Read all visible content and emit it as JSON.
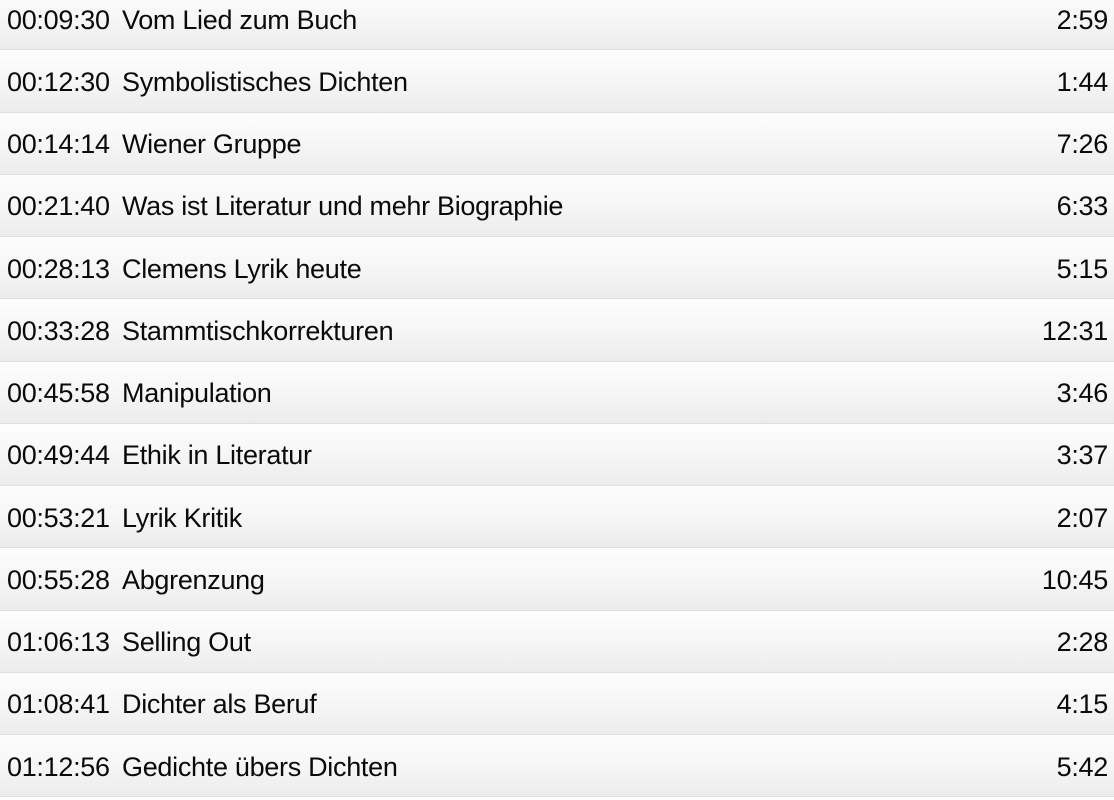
{
  "list": {
    "kind": "podcast-chapter-list",
    "colors": {
      "row_gradient_top": "#fdfdfd",
      "row_gradient_bottom": "#ececec",
      "divider": "#dfdfdf",
      "text": "#0a0a0a"
    }
  },
  "chapters": [
    {
      "start": "00:09:30",
      "title": "Vom Lied zum Buch",
      "duration": "2:59"
    },
    {
      "start": "00:12:30",
      "title": "Symbolistisches Dichten",
      "duration": "1:44"
    },
    {
      "start": "00:14:14",
      "title": "Wiener Gruppe",
      "duration": "7:26"
    },
    {
      "start": "00:21:40",
      "title": "Was ist Literatur und mehr Biographie",
      "duration": "6:33"
    },
    {
      "start": "00:28:13",
      "title": "Clemens Lyrik heute",
      "duration": "5:15"
    },
    {
      "start": "00:33:28",
      "title": "Stammtischkorrekturen",
      "duration": "12:31"
    },
    {
      "start": "00:45:58",
      "title": "Manipulation",
      "duration": "3:46"
    },
    {
      "start": "00:49:44",
      "title": "Ethik in Literatur",
      "duration": "3:37"
    },
    {
      "start": "00:53:21",
      "title": "Lyrik Kritik",
      "duration": "2:07"
    },
    {
      "start": "00:55:28",
      "title": "Abgrenzung",
      "duration": "10:45"
    },
    {
      "start": "01:06:13",
      "title": "Selling Out",
      "duration": "2:28"
    },
    {
      "start": "01:08:41",
      "title": "Dichter als Beruf",
      "duration": "4:15"
    },
    {
      "start": "01:12:56",
      "title": "Gedichte übers Dichten",
      "duration": "5:42"
    }
  ]
}
